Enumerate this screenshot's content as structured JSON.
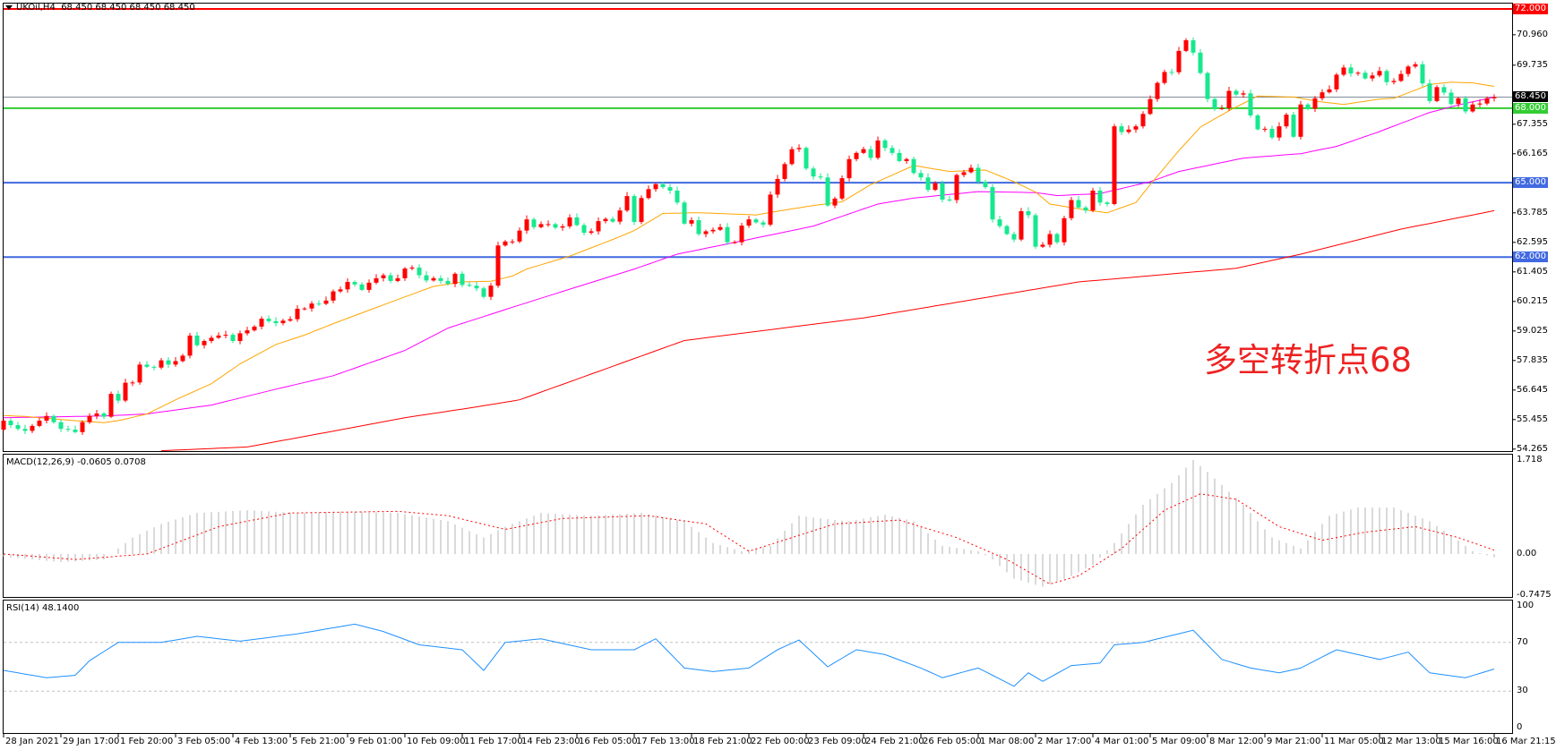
{
  "header": {
    "symbol": "UKOil,H4",
    "ohlc": "68.450 68.450 68.450 68.450"
  },
  "annotation": "多空转折点68",
  "colors": {
    "bull": "#ff0000",
    "bear": "#17e88f",
    "ma_fast": "#ffa500",
    "ma_mid": "#ff00ff",
    "ma_slow": "#ff0000",
    "macd_hist": "#b4b4b4",
    "macd_signal": "#ff0000",
    "rsi": "#1e90ff"
  },
  "price_axis": {
    "ticks": [
      "70.960",
      "69.735",
      "67.355",
      "66.165",
      "63.785",
      "62.595",
      "61.405",
      "60.215",
      "59.025",
      "57.835",
      "56.645",
      "55.455",
      "54.265"
    ],
    "range": [
      54.265,
      72.0
    ]
  },
  "levels": [
    {
      "label": "72.000",
      "price": 72.0,
      "color": "#ff0000",
      "text_color": "#ffffff"
    },
    {
      "label": "68.450",
      "price": 68.45,
      "color": "#7f8c99",
      "badge_color": "#000000",
      "text_color": "#ffffff"
    },
    {
      "label": "68.000",
      "price": 68.0,
      "color": "#32cd32",
      "text_color": "#ffffff"
    },
    {
      "label": "65.000",
      "price": 65.0,
      "color": "#4169e1",
      "text_color": "#ffffff"
    },
    {
      "label": "62.000",
      "price": 62.0,
      "color": "#4169e1",
      "text_color": "#ffffff"
    }
  ],
  "first_open": 55.05,
  "closes": [
    55.41,
    55.23,
    55.08,
    55.0,
    55.2,
    55.41,
    55.6,
    55.35,
    55.08,
    55.05,
    54.95,
    55.35,
    55.6,
    55.7,
    55.57,
    56.49,
    56.22,
    56.94,
    56.95,
    57.67,
    57.58,
    57.55,
    57.84,
    57.67,
    57.81,
    58.03,
    58.84,
    58.45,
    58.62,
    58.75,
    58.84,
    58.87,
    58.62,
    58.93,
    59.05,
    59.2,
    59.52,
    59.42,
    59.34,
    59.44,
    59.5,
    59.92,
    59.93,
    60.13,
    60.12,
    60.25,
    60.62,
    60.7,
    61.0,
    60.9,
    60.68,
    60.97,
    61.15,
    61.27,
    61.04,
    61.15,
    61.54,
    61.58,
    61.27,
    61.06,
    61.15,
    61.04,
    60.92,
    61.33,
    60.88,
    60.85,
    60.74,
    60.4,
    60.85,
    62.47,
    62.63,
    62.63,
    63.07,
    63.52,
    63.21,
    63.33,
    63.33,
    63.19,
    63.24,
    63.6,
    63.29,
    62.98,
    63.04,
    63.45,
    63.54,
    63.43,
    63.88,
    64.46,
    63.42,
    64.38,
    64.74,
    64.94,
    64.82,
    64.68,
    64.2,
    63.35,
    63.49,
    62.93,
    63.04,
    63.1,
    63.21,
    62.6,
    62.6,
    63.27,
    63.52,
    63.4,
    63.31,
    64.52,
    65.15,
    65.75,
    66.35,
    66.4,
    65.57,
    65.25,
    65.21,
    64.08,
    64.36,
    65.18,
    65.95,
    66.2,
    66.35,
    66.0,
    66.7,
    66.4,
    66.2,
    65.87,
    65.95,
    65.39,
    65.21,
    64.71,
    64.98,
    64.32,
    64.3,
    65.31,
    65.42,
    65.6,
    65.04,
    64.82,
    63.52,
    63.25,
    62.93,
    62.71,
    63.85,
    63.69,
    62.42,
    62.5,
    62.93,
    62.6,
    63.57,
    64.3,
    64.0,
    63.88,
    64.68,
    64.2,
    64.14,
    67.27,
    67.04,
    67.14,
    67.27,
    67.77,
    68.37,
    69.02,
    69.46,
    69.45,
    70.31,
    70.74,
    70.24,
    69.42,
    68.37,
    67.98,
    68.0,
    68.7,
    68.55,
    68.6,
    67.71,
    67.15,
    67.17,
    66.82,
    67.27,
    67.74,
    66.85,
    68.15,
    67.98,
    68.4,
    68.64,
    68.76,
    69.35,
    69.64,
    69.4,
    69.43,
    69.2,
    69.32,
    69.5,
    69.05,
    69.1,
    69.38,
    69.68,
    69.77,
    69.0,
    68.29,
    68.85,
    68.63,
    68.17,
    68.4,
    67.87,
    68.15,
    68.19,
    68.4,
    68.45
  ],
  "ma_fast": [
    [
      0,
      55.62
    ],
    [
      3,
      55.58
    ],
    [
      10,
      55.41
    ],
    [
      14,
      55.33
    ],
    [
      16,
      55.41
    ],
    [
      20,
      55.68
    ],
    [
      24,
      56.25
    ],
    [
      29,
      56.9
    ],
    [
      33,
      57.7
    ],
    [
      38,
      58.48
    ],
    [
      42,
      58.86
    ],
    [
      46,
      59.32
    ],
    [
      51,
      59.86
    ],
    [
      56,
      60.4
    ],
    [
      60,
      60.82
    ],
    [
      64,
      61.0
    ],
    [
      68,
      61.03
    ],
    [
      71,
      61.24
    ],
    [
      73,
      61.52
    ],
    [
      79,
      62.04
    ],
    [
      85,
      62.71
    ],
    [
      88,
      63.07
    ],
    [
      92,
      63.76
    ],
    [
      97,
      63.79
    ],
    [
      105,
      63.7
    ],
    [
      108,
      63.85
    ],
    [
      113,
      64.08
    ],
    [
      117,
      64.23
    ],
    [
      121,
      64.92
    ],
    [
      127,
      65.69
    ],
    [
      132,
      65.45
    ],
    [
      137,
      65.51
    ],
    [
      141,
      65.04
    ],
    [
      144,
      64.62
    ],
    [
      146,
      64.14
    ],
    [
      151,
      63.9
    ],
    [
      154,
      63.79
    ],
    [
      158,
      64.2
    ],
    [
      160,
      64.92
    ],
    [
      164,
      66.29
    ],
    [
      167,
      67.24
    ],
    [
      171,
      67.9
    ],
    [
      175,
      68.49
    ],
    [
      180,
      68.45
    ],
    [
      184,
      68.25
    ],
    [
      187,
      68.15
    ],
    [
      192,
      68.37
    ],
    [
      194,
      68.4
    ],
    [
      197,
      68.73
    ],
    [
      199,
      68.96
    ],
    [
      202,
      69.05
    ],
    [
      205,
      69.02
    ],
    [
      208,
      68.88
    ]
  ],
  "ma_mid": [
    [
      0,
      55.53
    ],
    [
      14,
      55.6
    ],
    [
      20,
      55.68
    ],
    [
      29,
      56.04
    ],
    [
      38,
      56.68
    ],
    [
      46,
      57.22
    ],
    [
      56,
      58.24
    ],
    [
      62,
      59.14
    ],
    [
      71,
      59.98
    ],
    [
      80,
      60.8
    ],
    [
      88,
      61.52
    ],
    [
      94,
      62.12
    ],
    [
      104,
      62.71
    ],
    [
      113,
      63.25
    ],
    [
      122,
      64.14
    ],
    [
      127,
      64.38
    ],
    [
      136,
      64.64
    ],
    [
      144,
      64.6
    ],
    [
      147,
      64.48
    ],
    [
      153,
      64.56
    ],
    [
      160,
      65.04
    ],
    [
      164,
      65.45
    ],
    [
      173,
      65.99
    ],
    [
      181,
      66.17
    ],
    [
      186,
      66.46
    ],
    [
      192,
      67.06
    ],
    [
      199,
      67.83
    ],
    [
      203,
      68.13
    ],
    [
      208,
      68.45
    ]
  ],
  "ma_slow": [
    [
      22,
      54.2
    ],
    [
      34,
      54.35
    ],
    [
      46,
      54.99
    ],
    [
      56,
      55.53
    ],
    [
      65,
      55.92
    ],
    [
      72,
      56.25
    ],
    [
      95,
      58.64
    ],
    [
      120,
      59.55
    ],
    [
      150,
      61.0
    ],
    [
      172,
      61.55
    ],
    [
      181,
      62.12
    ],
    [
      195,
      63.13
    ],
    [
      208,
      63.87
    ]
  ],
  "macd": {
    "label": "MACD(12,26,9) -0.0605 0.0708",
    "ticks": [
      "1.718",
      "0.00",
      "-0.7475"
    ],
    "range": [
      -0.7475,
      1.718
    ],
    "hist": [
      [
        0,
        -0.05
      ],
      [
        8,
        -0.15
      ],
      [
        14,
        -0.1
      ],
      [
        18,
        0.3
      ],
      [
        22,
        0.55
      ],
      [
        27,
        0.75
      ],
      [
        34,
        0.8
      ],
      [
        41,
        0.75
      ],
      [
        48,
        0.78
      ],
      [
        55,
        0.75
      ],
      [
        62,
        0.6
      ],
      [
        67,
        0.3
      ],
      [
        70,
        0.5
      ],
      [
        75,
        0.75
      ],
      [
        82,
        0.7
      ],
      [
        89,
        0.75
      ],
      [
        95,
        0.6
      ],
      [
        99,
        0.2
      ],
      [
        103,
        0.05
      ],
      [
        107,
        0.15
      ],
      [
        111,
        0.7
      ],
      [
        114,
        0.65
      ],
      [
        118,
        0.6
      ],
      [
        123,
        0.72
      ],
      [
        127,
        0.6
      ],
      [
        131,
        0.15
      ],
      [
        136,
        0.05
      ],
      [
        138,
        -0.1
      ],
      [
        141,
        -0.45
      ],
      [
        145,
        -0.6
      ],
      [
        149,
        -0.4
      ],
      [
        152,
        -0.2
      ],
      [
        155,
        0.2
      ],
      [
        159,
        0.9
      ],
      [
        163,
        1.3
      ],
      [
        166,
        1.72
      ],
      [
        168,
        1.5
      ],
      [
        173,
        0.9
      ],
      [
        177,
        0.3
      ],
      [
        181,
        0.1
      ],
      [
        185,
        0.7
      ],
      [
        189,
        0.85
      ],
      [
        194,
        0.85
      ],
      [
        199,
        0.6
      ],
      [
        203,
        0.25
      ],
      [
        205,
        0.05
      ],
      [
        208,
        -0.06
      ]
    ],
    "signal": [
      [
        0,
        0.0
      ],
      [
        10,
        -0.1
      ],
      [
        20,
        0.0
      ],
      [
        30,
        0.5
      ],
      [
        40,
        0.75
      ],
      [
        55,
        0.78
      ],
      [
        62,
        0.7
      ],
      [
        70,
        0.45
      ],
      [
        78,
        0.65
      ],
      [
        90,
        0.7
      ],
      [
        98,
        0.55
      ],
      [
        104,
        0.05
      ],
      [
        110,
        0.3
      ],
      [
        116,
        0.55
      ],
      [
        125,
        0.62
      ],
      [
        133,
        0.3
      ],
      [
        140,
        -0.1
      ],
      [
        146,
        -0.55
      ],
      [
        150,
        -0.4
      ],
      [
        156,
        0.1
      ],
      [
        162,
        0.8
      ],
      [
        167,
        1.1
      ],
      [
        172,
        1.0
      ],
      [
        178,
        0.5
      ],
      [
        184,
        0.25
      ],
      [
        190,
        0.4
      ],
      [
        197,
        0.5
      ],
      [
        203,
        0.3
      ],
      [
        208,
        0.07
      ]
    ]
  },
  "rsi": {
    "label": "RSI(14) 48.1400",
    "ticks": [
      "100",
      "70",
      "30",
      "0"
    ],
    "levels": [
      70,
      30
    ],
    "values": [
      [
        0,
        47
      ],
      [
        6,
        41
      ],
      [
        10,
        43
      ],
      [
        12,
        55
      ],
      [
        16,
        70
      ],
      [
        22,
        70
      ],
      [
        27,
        75
      ],
      [
        33,
        71
      ],
      [
        41,
        77
      ],
      [
        49,
        85
      ],
      [
        53,
        79
      ],
      [
        58,
        68
      ],
      [
        64,
        64
      ],
      [
        67,
        47
      ],
      [
        70,
        70
      ],
      [
        75,
        73
      ],
      [
        82,
        64
      ],
      [
        88,
        64
      ],
      [
        91,
        73
      ],
      [
        95,
        49
      ],
      [
        99,
        46
      ],
      [
        104,
        49
      ],
      [
        108,
        64
      ],
      [
        111,
        72
      ],
      [
        115,
        50
      ],
      [
        119,
        64
      ],
      [
        123,
        60
      ],
      [
        128,
        49
      ],
      [
        131,
        41
      ],
      [
        136,
        49
      ],
      [
        141,
        34
      ],
      [
        143,
        45
      ],
      [
        145,
        38
      ],
      [
        149,
        51
      ],
      [
        153,
        53
      ],
      [
        155,
        68
      ],
      [
        159,
        70
      ],
      [
        166,
        80
      ],
      [
        170,
        56
      ],
      [
        174,
        49
      ],
      [
        178,
        45
      ],
      [
        181,
        49
      ],
      [
        186,
        64
      ],
      [
        192,
        56
      ],
      [
        196,
        62
      ],
      [
        199,
        45
      ],
      [
        204,
        41
      ],
      [
        208,
        48.14
      ]
    ]
  },
  "time_axis": [
    "28 Jan 2021",
    "29 Jan 17:00",
    "1 Feb 20:00",
    "3 Feb 05:00",
    "4 Feb 13:00",
    "5 Feb 21:00",
    "9 Feb 01:00",
    "10 Feb 09:00",
    "11 Feb 17:00",
    "14 Feb 23:00",
    "16 Feb 05:00",
    "17 Feb 13:00",
    "18 Feb 21:00",
    "22 Feb 00:00",
    "23 Feb 09:00",
    "24 Feb 21:00",
    "26 Feb 05:00",
    "1 Mar 08:00",
    "2 Mar 17:00",
    "4 Mar 01:00",
    "5 Mar 09:00",
    "8 Mar 12:00",
    "9 Mar 21:00",
    "11 Mar 05:00",
    "12 Mar 13:00",
    "15 Mar 16:00",
    "16 Mar 21:15"
  ]
}
